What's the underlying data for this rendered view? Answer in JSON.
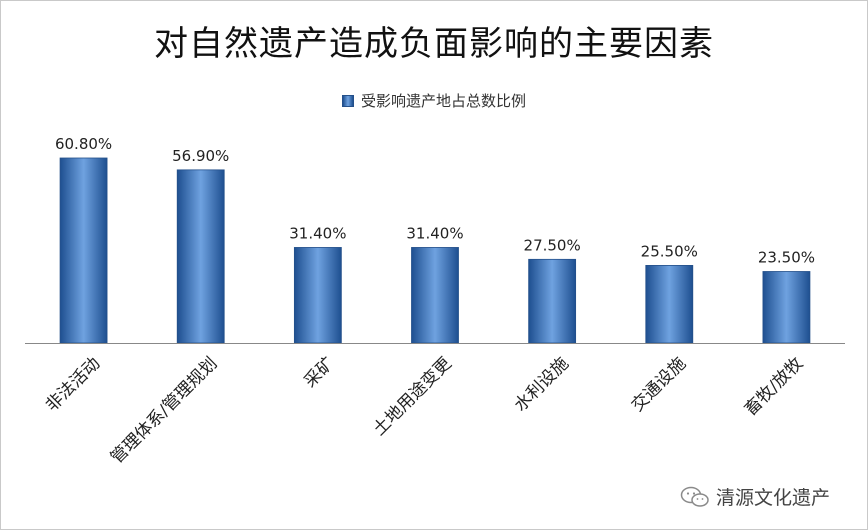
{
  "title": "对自然遗产造成负面影响的主要因素",
  "legend": {
    "label": "受影响遗产地占总数比例"
  },
  "watermark": {
    "text": "清源文化遗产",
    "icon": "wechat-icon"
  },
  "colors": {
    "bar_dark": "#1e4f90",
    "bar_light": "#6fa2e0",
    "axis": "#888888"
  },
  "chart_data": {
    "type": "bar",
    "categories": [
      "非法活动",
      "管理体系/管理规划",
      "采矿",
      "土地用途变更",
      "水利设施",
      "交通设施",
      "畜牧/放牧"
    ],
    "series": [
      {
        "name": "受影响遗产地占总数比例",
        "values": [
          60.8,
          56.9,
          31.4,
          31.4,
          27.5,
          25.5,
          23.5
        ],
        "labels": [
          "60.80%",
          "56.90%",
          "31.40%",
          "31.40%",
          "27.50%",
          "25.50%",
          "23.50%"
        ]
      }
    ],
    "ylim": [
      0,
      70
    ],
    "grid": false,
    "legend_position": "top"
  }
}
